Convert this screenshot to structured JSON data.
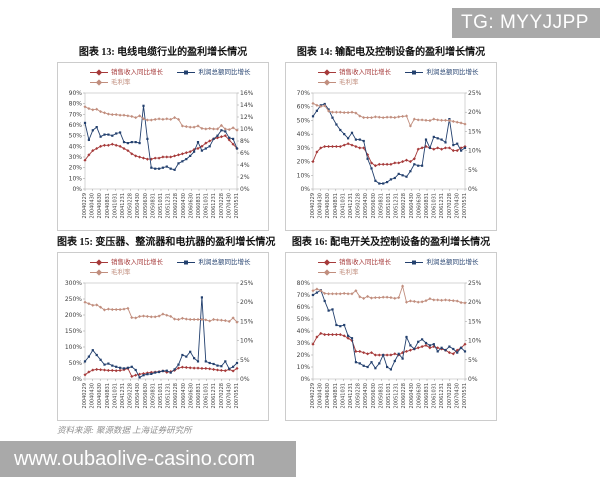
{
  "badge": {
    "text": "TG: MYYJJPP",
    "bg": "#a9a9a9",
    "fg": "#ffffff"
  },
  "watermark": {
    "text": "www.oubaolive-casino.com",
    "bg": "#a9a9a9",
    "fg": "#ffffff"
  },
  "source_note": "资料来源: 聚源数据 上海证券研究所",
  "colors": {
    "sales": "#a63a3a",
    "profit": "#23406e",
    "margin": "#c18e7e",
    "axis_text": "#404040",
    "plot_border": "#bbbbbb",
    "tick": "#999999"
  },
  "x_labels": [
    "20040229",
    "20040430",
    "20040630",
    "20040831",
    "20041031",
    "20041231",
    "20050228",
    "20050430",
    "20050630",
    "20050831",
    "20051031",
    "20051231",
    "20060228",
    "20060430",
    "20060630",
    "20060831",
    "20061031",
    "20061231",
    "20070228",
    "20070430",
    "20070531"
  ],
  "chart_data": [
    {
      "type": "line",
      "title": "图表 13: 电线电缆行业的盈利增长情况",
      "legend_position": "top",
      "grid": false,
      "left_axis": {
        "min": 0,
        "max": 90,
        "step": 10,
        "unit": "%"
      },
      "right_axis": {
        "min": 0,
        "max": 16,
        "step": 2,
        "unit": "%"
      },
      "series": [
        {
          "name": "销售收入同比增长",
          "axis": "left",
          "color_key": "sales",
          "marker": "diamond",
          "values": [
            27,
            32,
            36,
            38,
            40,
            41,
            41,
            42,
            41,
            40,
            38,
            36,
            33,
            31,
            30,
            29,
            28,
            28,
            29,
            29,
            30,
            30,
            30,
            31,
            32,
            33,
            34,
            35,
            37,
            38,
            40,
            43,
            45,
            47,
            48,
            49,
            50,
            46,
            42,
            38
          ]
        },
        {
          "name": "利润总额同比增长",
          "axis": "left",
          "color_key": "profit",
          "marker": "square",
          "values": [
            62,
            46,
            55,
            58,
            49,
            51,
            51,
            50,
            52,
            53,
            44,
            43,
            44,
            44,
            43,
            78,
            47,
            20,
            19,
            19,
            20,
            21,
            19,
            18,
            24,
            26,
            28,
            31,
            35,
            44,
            36,
            38,
            40,
            47,
            50,
            55,
            54,
            48,
            47,
            38
          ]
        },
        {
          "name": "毛利率",
          "axis": "right",
          "color_key": "margin",
          "marker": "diamond",
          "values": [
            13.7,
            13.4,
            13.2,
            13.3,
            12.9,
            12.7,
            12.5,
            12.4,
            12.4,
            12.3,
            12.3,
            12.2,
            12.1,
            11.9,
            12.2,
            11.7,
            11.5,
            11.5,
            11.6,
            11.7,
            11.6,
            11.7,
            11.6,
            11.9,
            11.6,
            10.5,
            10.4,
            10.3,
            10.3,
            10.5,
            10.1,
            10.0,
            10.1,
            10.0,
            10.0,
            10.6,
            10.0,
            9.9,
            10.2,
            9.8
          ]
        }
      ]
    },
    {
      "type": "line",
      "title": "图表 14: 输配电及控制设备的盈利增长情况",
      "legend_position": "top",
      "grid": false,
      "left_axis": {
        "min": 0,
        "max": 70,
        "step": 10,
        "unit": "%"
      },
      "right_axis": {
        "min": 0,
        "max": 25,
        "step": 5,
        "unit": "%"
      },
      "series": [
        {
          "name": "销售收入同比增长",
          "axis": "left",
          "color_key": "sales",
          "marker": "diamond",
          "values": [
            20,
            27,
            30,
            31,
            31,
            31,
            31,
            31,
            32,
            33,
            32,
            31,
            30,
            30,
            25,
            19,
            17,
            18,
            18,
            18,
            18,
            19,
            19,
            20,
            21,
            20,
            22,
            29,
            30,
            31,
            30,
            29,
            30,
            29,
            30,
            30,
            28,
            28,
            30,
            31
          ]
        },
        {
          "name": "利润总额同比增长",
          "axis": "left",
          "color_key": "profit",
          "marker": "square",
          "values": [
            53,
            57,
            61,
            62,
            58,
            52,
            47,
            43,
            40,
            37,
            41,
            36,
            36,
            35,
            22,
            15,
            6,
            4,
            4,
            5,
            7,
            8,
            11,
            10,
            9,
            13,
            18,
            17,
            17,
            36,
            30,
            38,
            37,
            36,
            34,
            51,
            32,
            33,
            28,
            30
          ]
        },
        {
          "name": "毛利率",
          "axis": "right",
          "color_key": "margin",
          "marker": "diamond",
          "values": [
            22.3,
            21.8,
            21.5,
            21.7,
            20.3,
            20.0,
            20.0,
            20.0,
            19.9,
            19.9,
            20.0,
            19.8,
            19.0,
            18.6,
            18.6,
            18.6,
            18.8,
            18.7,
            18.6,
            18.7,
            18.7,
            18.6,
            18.8,
            18.9,
            19.0,
            16.4,
            18.2,
            18.0,
            18.0,
            17.9,
            17.8,
            18.2,
            18.0,
            17.9,
            17.9,
            17.8,
            17.6,
            17.4,
            17.2,
            16.9
          ]
        }
      ]
    },
    {
      "type": "line",
      "title": "图表 15: 变压器、整流器和电抗器的盈利增长情况",
      "legend_position": "top",
      "grid": false,
      "left_axis": {
        "min": 0,
        "max": 300,
        "step": 50,
        "unit": "%"
      },
      "right_axis": {
        "min": 0,
        "max": 25,
        "step": 5,
        "unit": "%"
      },
      "series": [
        {
          "name": "销售收入同比增长",
          "axis": "left",
          "color_key": "sales",
          "marker": "diamond",
          "values": [
            13,
            22,
            28,
            30,
            29,
            28,
            27,
            27,
            26,
            27,
            29,
            33,
            8,
            12,
            15,
            17,
            19,
            21,
            22,
            23,
            25,
            21,
            23,
            27,
            34,
            37,
            36,
            35,
            34,
            34,
            33,
            33,
            32,
            30,
            28,
            27,
            26,
            30,
            25,
            33
          ]
        },
        {
          "name": "利润总额同比增长",
          "axis": "left",
          "color_key": "profit",
          "marker": "square",
          "values": [
            55,
            70,
            90,
            75,
            60,
            45,
            48,
            42,
            38,
            35,
            33,
            35,
            38,
            28,
            5,
            12,
            15,
            16,
            20,
            22,
            25,
            26,
            20,
            30,
            45,
            75,
            70,
            85,
            65,
            55,
            255,
            55,
            50,
            47,
            42,
            40,
            55,
            32,
            38,
            50
          ]
        },
        {
          "name": "毛利率",
          "axis": "right",
          "color_key": "margin",
          "marker": "diamond",
          "values": [
            20.0,
            19.6,
            19.2,
            19.3,
            18.7,
            18.0,
            18.2,
            18.1,
            18.1,
            18.1,
            18.2,
            18.4,
            16.0,
            15.9,
            16.3,
            16.4,
            16.3,
            16.2,
            16.2,
            16.4,
            16.9,
            16.6,
            16.3,
            15.6,
            15.5,
            15.8,
            15.6,
            15.5,
            15.5,
            15.5,
            15.5,
            15.4,
            15.1,
            15.5,
            15.4,
            15.3,
            15.2,
            15.0,
            15.9,
            14.8
          ]
        }
      ]
    },
    {
      "type": "line",
      "title": "图表 16: 配电开关及控制设备的盈利增长情况",
      "legend_position": "top",
      "grid": false,
      "left_axis": {
        "min": 0,
        "max": 80,
        "step": 10,
        "unit": "%"
      },
      "right_axis": {
        "min": 0,
        "max": 25,
        "step": 5,
        "unit": "%"
      },
      "series": [
        {
          "name": "销售收入同比增长",
          "axis": "left",
          "color_key": "sales",
          "marker": "diamond",
          "values": [
            29,
            35,
            38,
            37,
            37,
            37,
            37,
            37,
            36,
            34,
            32,
            23,
            23,
            22,
            21,
            22,
            20,
            20,
            20,
            20,
            20,
            21,
            20,
            22,
            23,
            24,
            25,
            26,
            27,
            28,
            26,
            27,
            26,
            25,
            24,
            22,
            21,
            24,
            26,
            29
          ]
        },
        {
          "name": "利润总额同比增长",
          "axis": "left",
          "color_key": "profit",
          "marker": "square",
          "values": [
            70,
            72,
            74,
            65,
            57,
            58,
            45,
            44,
            45,
            36,
            34,
            14,
            13,
            11,
            10,
            14,
            9,
            13,
            20,
            10,
            8,
            15,
            21,
            17,
            35,
            28,
            25,
            31,
            33,
            30,
            28,
            29,
            23,
            26,
            24,
            27,
            25,
            22,
            26,
            23
          ]
        },
        {
          "name": "毛利率",
          "axis": "right",
          "color_key": "margin",
          "marker": "diamond",
          "values": [
            23.0,
            23.4,
            23.0,
            22.3,
            22.2,
            22.2,
            22.2,
            22.2,
            22.3,
            22.2,
            22.2,
            23.0,
            21.4,
            21.0,
            21.5,
            21.1,
            21.2,
            21.2,
            21.3,
            21.3,
            21.2,
            21.0,
            21.2,
            24.2,
            20.0,
            20.3,
            20.2,
            20.0,
            20.1,
            20.4,
            20.9,
            20.6,
            20.6,
            20.5,
            20.6,
            20.5,
            20.4,
            20.3,
            19.9,
            19.8
          ]
        }
      ]
    }
  ]
}
